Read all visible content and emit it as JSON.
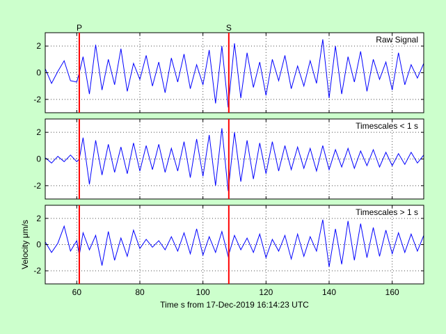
{
  "colors": {
    "background": "#ccffcc",
    "plot_background": "#ffffff",
    "trace": "#0000ff",
    "phase_marker": "#ff0000",
    "axes": "#000000"
  },
  "chart_data": {
    "type": "line",
    "xlabel": "Time s from 17-Dec-2019 16:14:23 UTC",
    "xlim": [
      50,
      170
    ],
    "xticks": [
      60,
      80,
      100,
      120,
      140,
      160
    ],
    "grid": true,
    "phase_markers": [
      {
        "label": "P",
        "x": 60.8
      },
      {
        "label": "S",
        "x": 108.2
      }
    ],
    "panels": [
      {
        "title": "Raw Signal",
        "ylabel": "",
        "ylim": [
          -3,
          3
        ],
        "yticks": [
          -2,
          0,
          2
        ],
        "series": [
          {
            "x": [
              50,
              52,
              54,
              56,
              58,
              60,
              60.8,
              62,
              64,
              66,
              68,
              70,
              72,
              74,
              76,
              78,
              80,
              82,
              84,
              86,
              88,
              90,
              92,
              94,
              96,
              98,
              100,
              102,
              104,
              106,
              108,
              110,
              112,
              114,
              116,
              118,
              120,
              122,
              124,
              126,
              128,
              130,
              132,
              134,
              136,
              138,
              140,
              142,
              144,
              146,
              148,
              150,
              152,
              154,
              156,
              158,
              160,
              162,
              164,
              166,
              168,
              170
            ],
            "y": [
              0.3,
              -0.8,
              0.1,
              0.9,
              -0.6,
              -0.7,
              0.0,
              1.2,
              -1.6,
              2.1,
              -1.3,
              1.0,
              -0.9,
              1.8,
              -1.4,
              0.7,
              -0.5,
              1.3,
              -1.0,
              0.8,
              -1.5,
              1.1,
              -0.7,
              1.4,
              -1.2,
              0.6,
              -0.9,
              1.7,
              -2.3,
              2.0,
              -2.6,
              2.2,
              -1.9,
              1.5,
              -1.1,
              0.8,
              -1.7,
              1.0,
              -0.6,
              1.3,
              -1.2,
              0.5,
              -1.0,
              0.9,
              -0.8,
              2.5,
              -1.9,
              2.0,
              -1.6,
              1.2,
              -0.7,
              1.6,
              -1.4,
              1.0,
              -0.5,
              0.8,
              -1.3,
              1.5,
              -0.9,
              0.6,
              -0.4,
              0.7
            ]
          }
        ]
      },
      {
        "title": "Timescales < 1 s",
        "ylabel": "",
        "ylim": [
          -3,
          3
        ],
        "yticks": [
          -2,
          0,
          2
        ],
        "series": [
          {
            "x": [
              50,
              52,
              54,
              56,
              58,
              60,
              60.8,
              62,
              64,
              66,
              68,
              70,
              72,
              74,
              76,
              78,
              80,
              82,
              84,
              86,
              88,
              90,
              92,
              94,
              96,
              98,
              100,
              102,
              104,
              106,
              108,
              110,
              112,
              114,
              116,
              118,
              120,
              122,
              124,
              126,
              128,
              130,
              132,
              134,
              136,
              138,
              140,
              142,
              144,
              146,
              148,
              150,
              152,
              154,
              156,
              158,
              160,
              162,
              164,
              166,
              168,
              170
            ],
            "y": [
              0.1,
              -0.3,
              0.2,
              -0.2,
              0.3,
              -0.2,
              0.0,
              1.6,
              -1.9,
              1.4,
              -1.2,
              1.1,
              -1.0,
              0.9,
              -1.1,
              1.2,
              -0.9,
              1.0,
              -0.8,
              1.1,
              -1.0,
              0.8,
              -0.9,
              1.3,
              -1.4,
              1.5,
              -1.3,
              1.8,
              -2.0,
              2.3,
              -2.4,
              2.0,
              -1.7,
              1.4,
              -1.5,
              1.2,
              -1.1,
              1.3,
              -0.9,
              1.0,
              -0.8,
              0.9,
              -0.7,
              0.8,
              -0.9,
              1.0,
              -0.8,
              0.7,
              -0.6,
              0.8,
              -0.7,
              0.6,
              -0.5,
              0.7,
              -0.6,
              0.5,
              -0.5,
              0.4,
              -0.4,
              0.5,
              -0.3,
              0.3
            ]
          }
        ]
      },
      {
        "title": "Timescales > 1 s",
        "ylabel": "Velocity μm/s",
        "ylim": [
          -3,
          3
        ],
        "yticks": [
          -2,
          0,
          2
        ],
        "series": [
          {
            "x": [
              50,
              52,
              54,
              56,
              58,
              60,
              60.8,
              62,
              64,
              66,
              68,
              70,
              72,
              74,
              76,
              78,
              80,
              82,
              84,
              86,
              88,
              90,
              92,
              94,
              96,
              98,
              100,
              102,
              104,
              106,
              108,
              110,
              112,
              114,
              116,
              118,
              120,
              122,
              124,
              126,
              128,
              130,
              132,
              134,
              136,
              138,
              140,
              142,
              144,
              146,
              148,
              150,
              152,
              154,
              156,
              158,
              160,
              162,
              164,
              166,
              168,
              170
            ],
            "y": [
              0.2,
              -0.6,
              0.1,
              1.4,
              -0.5,
              0.3,
              -0.8,
              0.9,
              -0.4,
              0.7,
              -1.6,
              1.0,
              -1.2,
              0.5,
              -0.9,
              1.1,
              -0.3,
              0.4,
              -0.2,
              0.3,
              -0.4,
              0.6,
              -0.5,
              0.9,
              -0.7,
              1.2,
              -0.8,
              0.6,
              -0.6,
              1.0,
              -0.9,
              0.7,
              -0.4,
              0.5,
              -0.6,
              0.8,
              -1.0,
              0.4,
              -0.5,
              0.7,
              -1.1,
              0.8,
              -0.9,
              0.6,
              -0.5,
              1.9,
              -1.7,
              1.2,
              -1.5,
              1.8,
              -1.2,
              1.6,
              -1.0,
              1.3,
              -0.9,
              1.1,
              -0.7,
              0.9,
              -0.6,
              0.8,
              -0.5,
              0.7
            ]
          }
        ]
      }
    ]
  }
}
